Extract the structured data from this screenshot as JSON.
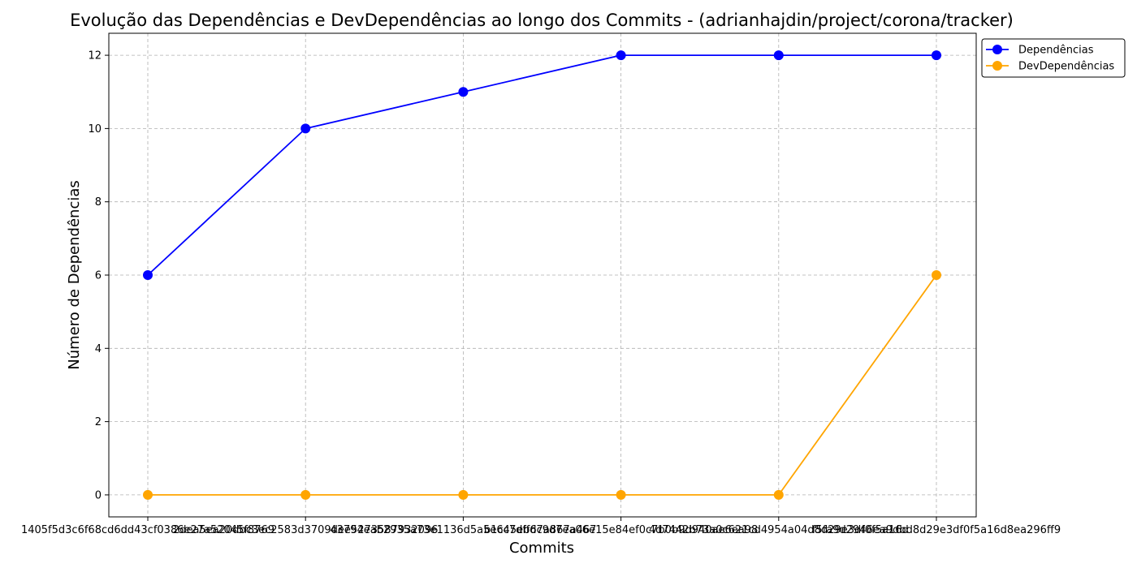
{
  "chart_data": {
    "type": "line",
    "title": "Evolução das Dependências e DevDependências ao longo dos Commits - (adrianhajdin/project/corona/tracker)",
    "xlabel": "Commits",
    "ylabel": "Número de Dependências",
    "categories": [
      "1405f5d3c6f68cd6dd43cf0386e27a52045f8769",
      "2dea5ea20dbc3ec2583d3709dee5273587932096",
      "43794eab2935a73e1136d5a5e6c7dffd7a867a467",
      "b1c45eb6c9d7ea06e15e84ef0c7b0b9d940ae6ea98",
      "4d7442b73a0c621cd4954a04d8d29e3df0f5a16d",
      "f5fa9d2946ea9dbd8d29e3df0f5a16d8ea296ff9"
    ],
    "series": [
      {
        "name": "Dependências",
        "values": [
          6,
          10,
          11,
          12,
          12,
          12
        ],
        "color": "#0000ff"
      },
      {
        "name": "DevDependências",
        "values": [
          0,
          0,
          0,
          0,
          0,
          6
        ],
        "color": "#ffa500"
      }
    ],
    "ylim": [
      -0.6,
      12.6
    ],
    "yticks": [
      "0",
      "2",
      "4",
      "6",
      "8",
      "10",
      "12"
    ],
    "grid": true,
    "legend_position": "outside-top-right"
  }
}
